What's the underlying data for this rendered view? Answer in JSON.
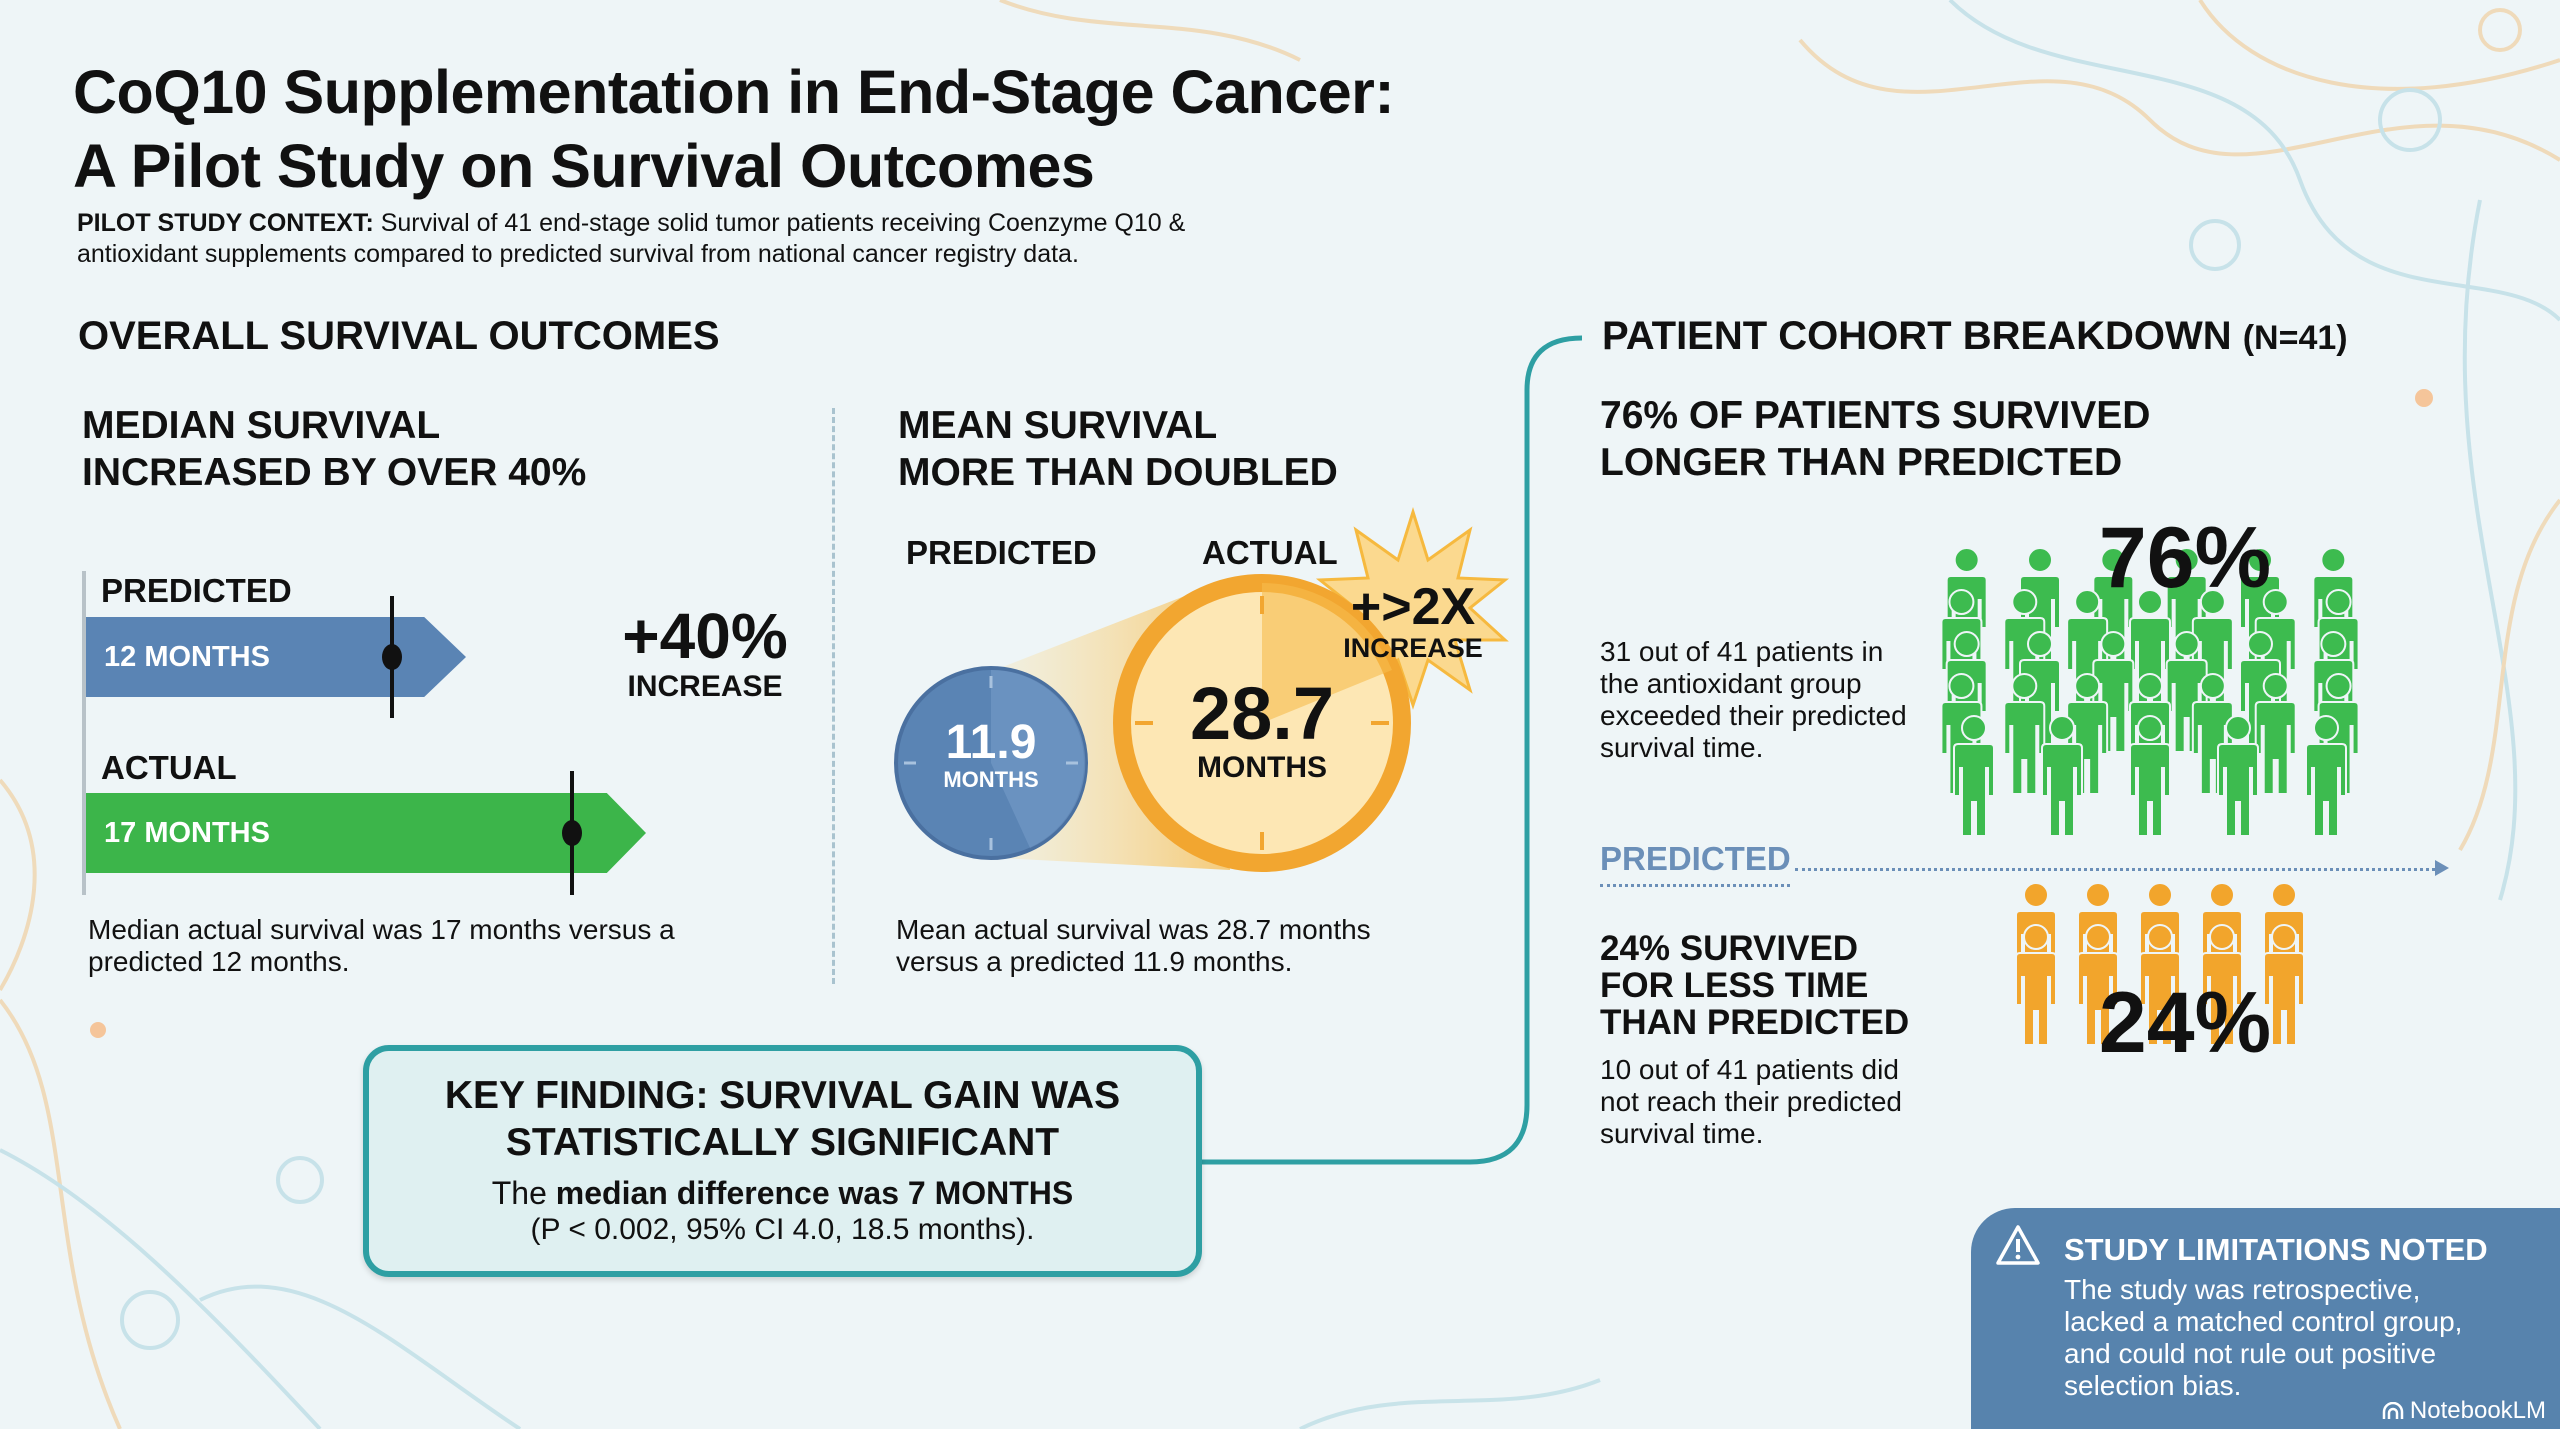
{
  "header": {
    "title_line1": "CoQ10 Supplementation in End-Stage Cancer:",
    "title_line2": "A Pilot Study on Survival Outcomes",
    "context_label": "PILOT STUDY CONTEXT:",
    "context_text": " Survival of 41 end-stage solid tumor patients receiving Coenzyme Q10 & antioxidant supplements compared to predicted survival from national cancer registry data."
  },
  "overall": {
    "heading": "OVERALL SURVIVAL OUTCOMES",
    "median": {
      "heading_line1": "MEDIAN SURVIVAL",
      "heading_line2": "INCREASED BY OVER 40%",
      "predicted_label": "PREDICTED",
      "predicted_value": "12 MONTHS",
      "predicted_months": 12,
      "actual_label": "ACTUAL",
      "actual_value": "17 MONTHS",
      "actual_months": 17,
      "increase_value": "+40%",
      "increase_label": "INCREASE",
      "caption": "Median actual survival was 17 months versus a predicted 12 months."
    },
    "mean": {
      "heading_line1": "MEAN SURVIVAL",
      "heading_line2": "MORE THAN DOUBLED",
      "predicted_label": "PREDICTED",
      "actual_label": "ACTUAL",
      "predicted_value": "11.9",
      "predicted_unit": "MONTHS",
      "actual_value": "28.7",
      "actual_unit": "MONTHS",
      "burst_value": "+>2X",
      "burst_label": "INCREASE",
      "caption": "Mean actual survival was 28.7 months versus a predicted 11.9 months."
    }
  },
  "key_finding": {
    "heading_line1": "KEY FINDING: SURVIVAL GAIN WAS",
    "heading_line2": "STATISTICALLY SIGNIFICANT",
    "text_pre": "The ",
    "text_bold": "median difference was 7 MONTHS",
    "stats": "(P < 0.002, 95% CI 4.0, 18.5 months)."
  },
  "cohort": {
    "heading": "PATIENT COHORT BREAKDOWN",
    "n_label": "(N=41)",
    "above": {
      "heading_line1": "76% OF PATIENTS SURVIVED",
      "heading_line2": "LONGER THAN PREDICTED",
      "percent": "76%",
      "count": 31,
      "text": "31 out of 41 patients in the antioxidant group exceeded their predicted survival time."
    },
    "divider_label": "PREDICTED",
    "below": {
      "heading_line1": "24% SURVIVED",
      "heading_line2": "FOR LESS TIME",
      "heading_line3": "THAN PREDICTED",
      "percent": "24%",
      "count": 10,
      "text": "10 out of 41 patients did not reach their predicted survival time."
    }
  },
  "limitations": {
    "icon": "warning-icon",
    "heading": "STUDY LIMITATIONS NOTED",
    "text": "The study was retrospective, lacked a matched control group, and could not rule out positive selection bias."
  },
  "branding": {
    "label": "NotebookLM"
  },
  "colors": {
    "blue": "#5a84b4",
    "green": "#3cb54a",
    "orange": "#f2a630",
    "teal": "#2e9fa3",
    "person_green": "#3dbb4f",
    "person_orange": "#f2a52c"
  }
}
